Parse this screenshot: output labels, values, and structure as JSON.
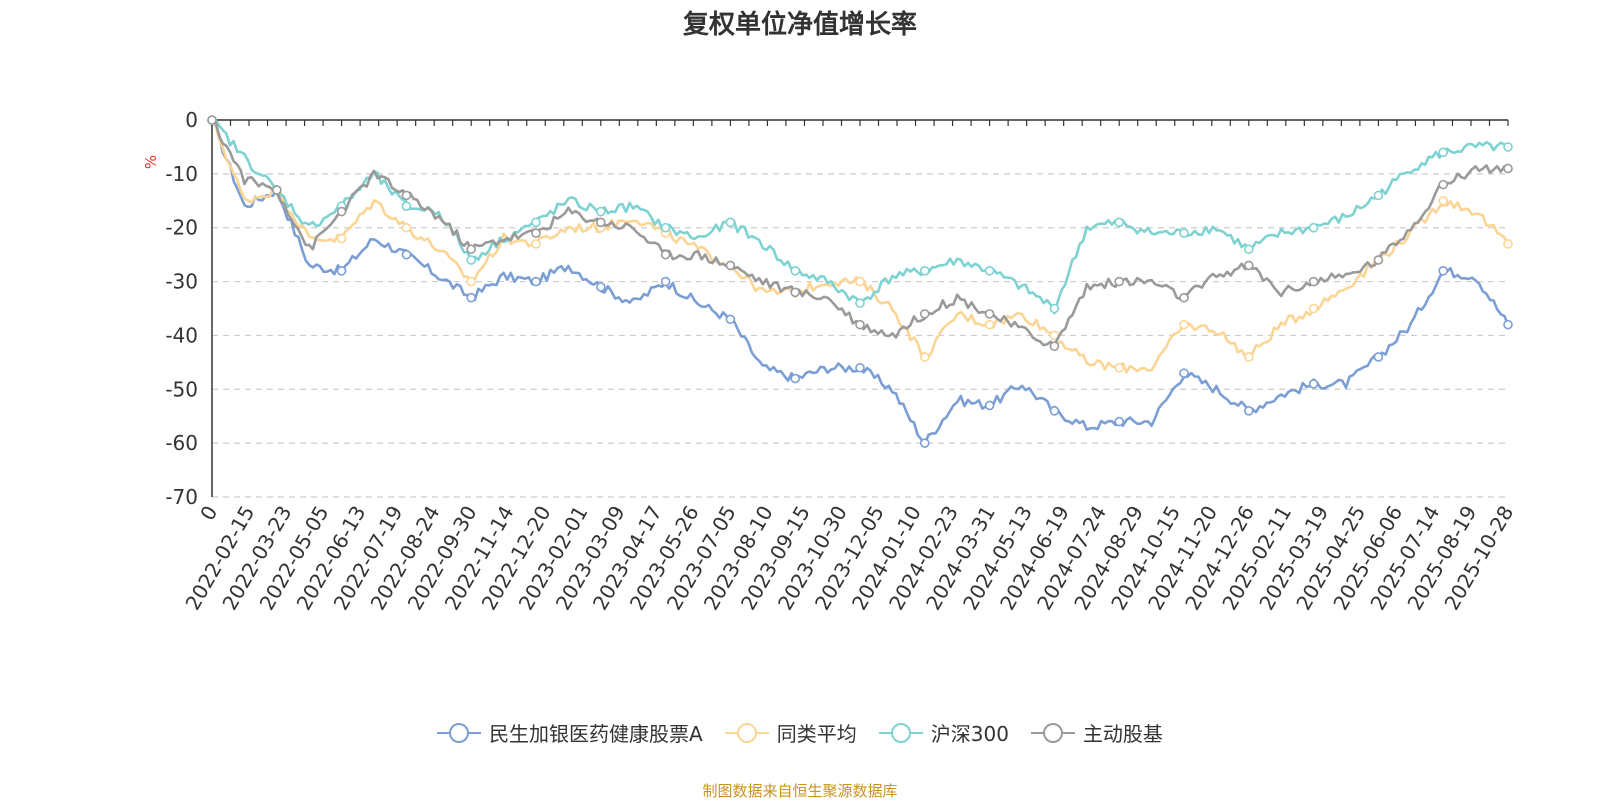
{
  "chart_data": {
    "type": "line",
    "title": "复权单位净值增长率",
    "ylabel": "%",
    "ylim": [
      -70,
      0
    ],
    "yticks": [
      0,
      -10,
      -20,
      -30,
      -40,
      -50,
      -60,
      -70
    ],
    "xlabels": [
      "0",
      "2022-02-15",
      "2022-03-23",
      "2022-05-05",
      "2022-06-13",
      "2022-07-19",
      "2022-08-24",
      "2022-09-30",
      "2022-11-14",
      "2022-12-20",
      "2023-02-01",
      "2023-03-09",
      "2023-04-17",
      "2023-05-26",
      "2023-07-05",
      "2023-08-10",
      "2023-09-15",
      "2023-10-30",
      "2023-12-05",
      "2024-01-10",
      "2024-02-23",
      "2024-03-31",
      "2024-05-13",
      "2024-06-19",
      "2024-07-24",
      "2024-08-29",
      "2024-10-15",
      "2024-11-20",
      "2024-12-26",
      "2025-02-11",
      "2025-03-19",
      "2025-04-25",
      "2025-06-06",
      "2025-07-14",
      "2025-08-19",
      "2025-10-28"
    ],
    "grid": true,
    "legend_position": "bottom",
    "series": [
      {
        "name": "民生加银医药健康股票A",
        "color": "#7b9fd4",
        "values": [
          0,
          -16,
          -13,
          -27,
          -28,
          -22,
          -25,
          -29,
          -33,
          -29,
          -30,
          -27,
          -31,
          -34,
          -30,
          -34,
          -37,
          -46,
          -48,
          -46,
          -46,
          -50,
          -60,
          -52,
          -53,
          -49,
          -54,
          -57,
          -56,
          -56,
          -47,
          -50,
          -54,
          -51,
          -49,
          -49,
          -44,
          -38,
          -28,
          -29,
          -38
        ]
      },
      {
        "name": "同类平均",
        "color": "#fcd594",
        "values": [
          0,
          -15,
          -13,
          -22,
          -22,
          -15,
          -20,
          -24,
          -30,
          -22,
          -23,
          -20,
          -20,
          -18,
          -21,
          -24,
          -27,
          -32,
          -32,
          -30,
          -30,
          -35,
          -44,
          -36,
          -38,
          -36,
          -40,
          -45,
          -46,
          -46,
          -38,
          -39,
          -44,
          -38,
          -35,
          -31,
          -26,
          -21,
          -15,
          -17,
          -23
        ]
      },
      {
        "name": "沪深300",
        "color": "#7ed3d2",
        "values": [
          0,
          -7,
          -13,
          -20,
          -16,
          -10,
          -16,
          -17,
          -26,
          -22,
          -19,
          -15,
          -17,
          -16,
          -20,
          -22,
          -19,
          -23,
          -28,
          -30,
          -34,
          -29,
          -28,
          -26,
          -28,
          -31,
          -35,
          -20,
          -19,
          -21,
          -21,
          -20,
          -24,
          -21,
          -20,
          -18,
          -14,
          -9,
          -6,
          -5,
          -5
        ]
      },
      {
        "name": "主动股基",
        "color": "#9a9a9a",
        "values": [
          0,
          -11,
          -13,
          -24,
          -17,
          -10,
          -14,
          -18,
          -24,
          -22,
          -21,
          -17,
          -19,
          -20,
          -25,
          -25,
          -27,
          -30,
          -32,
          -33,
          -38,
          -40,
          -36,
          -33,
          -36,
          -39,
          -42,
          -31,
          -30,
          -30,
          -33,
          -29,
          -27,
          -32,
          -30,
          -29,
          -26,
          -20,
          -12,
          -9,
          -9
        ]
      }
    ]
  },
  "footer": {
    "source": "制图数据来自恒生聚源数据库",
    "source_color": "#c8941e"
  }
}
